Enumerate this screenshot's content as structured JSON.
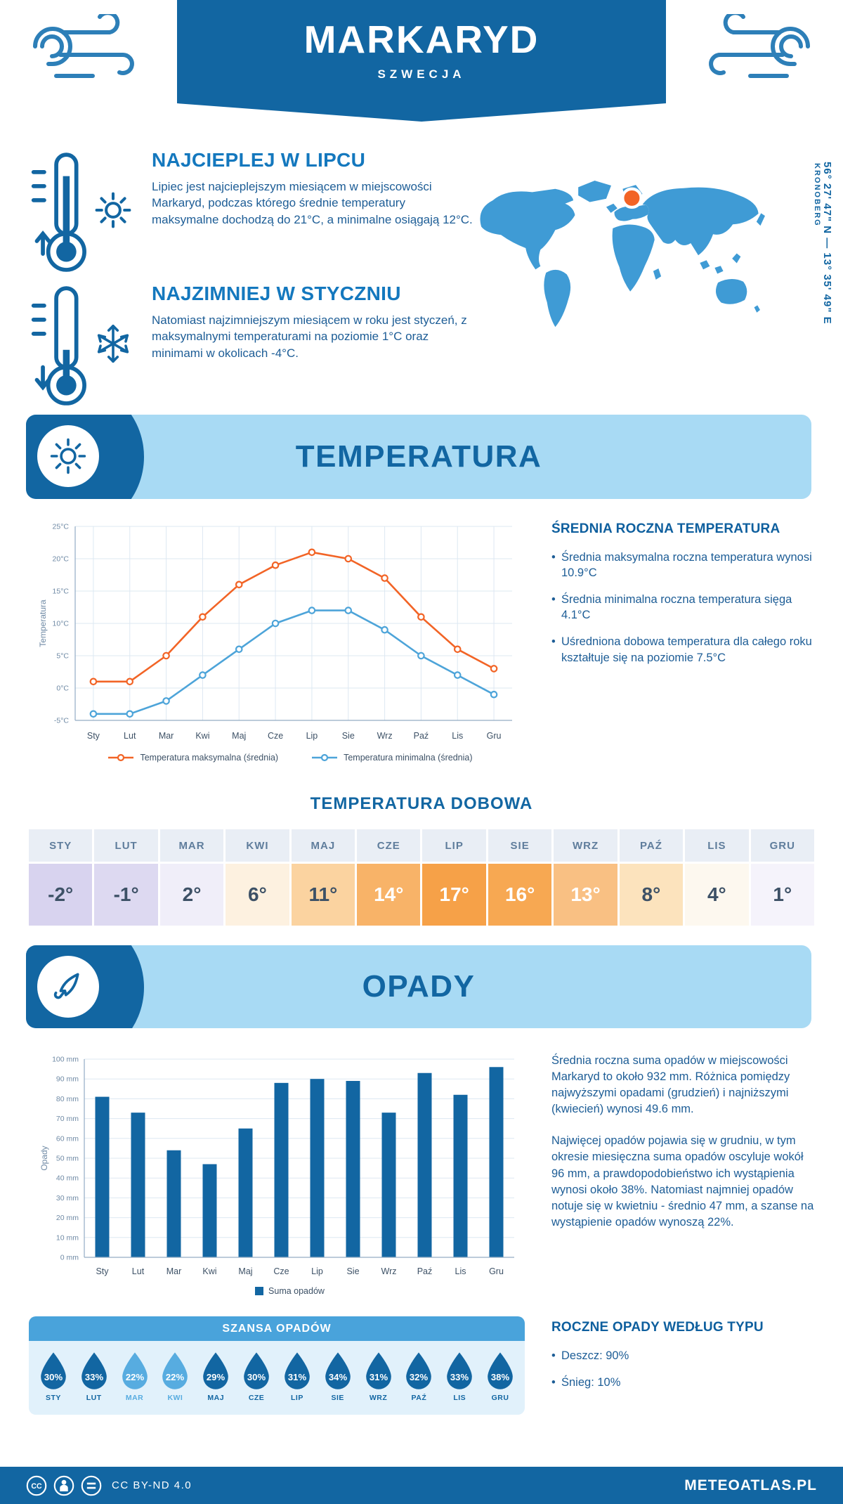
{
  "theme": {
    "dark_blue": "#1266a2",
    "banner_bg": "#a8daf4",
    "orange": "#f26426",
    "light_blue_line": "#4da4d9",
    "map_blue": "#3f9bd5",
    "body_text": "#1d5d96",
    "szansa_header_bg": "#49a3db",
    "szansa_body_bg": "#e1f1fb"
  },
  "header": {
    "title": "MARKARYD",
    "subtitle": "SZWECJA",
    "coordinates": "56° 27' 47\" N — 13° 35' 49\" E",
    "region": "KRONOBERG"
  },
  "intro": {
    "warm": {
      "title": "NAJCIEPLEJ W LIPCU",
      "text": "Lipiec jest najcieplejszym miesiącem w miejscowości Markaryd, podczas którego średnie temperatury maksymalne dochodzą do 21°C, a minimalne osiągają 12°C."
    },
    "cold": {
      "title": "NAJZIMNIEJ W STYCZNIU",
      "text": "Natomiast najzimniejszym miesiącem w roku jest styczeń, z maksymalnymi temperaturami na poziomie 1°C oraz minimami w okolicach -4°C."
    }
  },
  "temperature": {
    "banner": "TEMPERATURA",
    "side_title": "ŚREDNIA ROCZNA TEMPERATURA",
    "bullets": [
      "Średnia maksymalna roczna temperatura wynosi 10.9°C",
      "Średnia minimalna roczna temperatura sięga 4.1°C",
      "Uśredniona dobowa temperatura dla całego roku kształtuje się na poziomie 7.5°C"
    ],
    "daily_title": "TEMPERATURA DOBOWA"
  },
  "daily_table": {
    "months": [
      "STY",
      "LUT",
      "MAR",
      "KWI",
      "MAJ",
      "CZE",
      "LIP",
      "SIE",
      "WRZ",
      "PAŹ",
      "LIS",
      "GRU"
    ],
    "cells": [
      {
        "value": "-2°",
        "bg": "#d8d3ef",
        "fg": "#3d5166"
      },
      {
        "value": "-1°",
        "bg": "#ddd9f1",
        "fg": "#3d5166"
      },
      {
        "value": "2°",
        "bg": "#f0eef9",
        "fg": "#3d5166"
      },
      {
        "value": "6°",
        "bg": "#fdf1e0",
        "fg": "#3d5166"
      },
      {
        "value": "11°",
        "bg": "#fbd3a0",
        "fg": "#3d5166"
      },
      {
        "value": "14°",
        "bg": "#f8b368",
        "fg": "#ffffff"
      },
      {
        "value": "17°",
        "bg": "#f6a148",
        "fg": "#ffffff"
      },
      {
        "value": "16°",
        "bg": "#f7a852",
        "fg": "#ffffff"
      },
      {
        "value": "13°",
        "bg": "#f9c083",
        "fg": "#ffffff"
      },
      {
        "value": "8°",
        "bg": "#fce3bd",
        "fg": "#3d5166"
      },
      {
        "value": "4°",
        "bg": "#fdf8ef",
        "fg": "#3d5166"
      },
      {
        "value": "1°",
        "bg": "#f5f3fb",
        "fg": "#3d5166"
      }
    ]
  },
  "precipitation": {
    "banner": "OPADY",
    "paragraphs": [
      "Średnia roczna suma opadów w miejscowości Markaryd to około 932 mm. Różnica pomiędzy najwyższymi opadami (grudzień) i najniższymi (kwiecień) wynosi 49.6 mm.",
      "Najwięcej opadów pojawia się w grudniu, w tym okresie miesięczna suma opadów oscyluje wokół 96 mm, a prawdopodobieństwo ich wystąpienia wynosi około 38%. Natomiast najmniej opadów notuje się w kwietniu - średnio 47 mm, a szanse na wystąpienie opadów wynoszą 22%."
    ]
  },
  "rain_chance": {
    "title": "SZANSA OPADÓW",
    "items": [
      {
        "month": "STY",
        "value": "30%",
        "color": "#1266a2"
      },
      {
        "month": "LUT",
        "value": "33%",
        "color": "#1266a2"
      },
      {
        "month": "MAR",
        "value": "22%",
        "color": "#57ace0"
      },
      {
        "month": "KWI",
        "value": "22%",
        "color": "#57ace0"
      },
      {
        "month": "MAJ",
        "value": "29%",
        "color": "#1266a2"
      },
      {
        "month": "CZE",
        "value": "30%",
        "color": "#1266a2"
      },
      {
        "month": "LIP",
        "value": "31%",
        "color": "#1266a2"
      },
      {
        "month": "SIE",
        "value": "34%",
        "color": "#1266a2"
      },
      {
        "month": "WRZ",
        "value": "31%",
        "color": "#1266a2"
      },
      {
        "month": "PAŹ",
        "value": "32%",
        "color": "#1266a2"
      },
      {
        "month": "LIS",
        "value": "33%",
        "color": "#1266a2"
      },
      {
        "month": "GRU",
        "value": "38%",
        "color": "#1266a2"
      }
    ],
    "side_title": "ROCZNE OPADY WEDŁUG TYPU",
    "bullets": [
      "Deszcz: 90%",
      "Śnieg: 10%"
    ]
  },
  "footer": {
    "license": "CC BY-ND 4.0",
    "brand": "METEOATLAS.PL"
  },
  "chart_data": [
    {
      "type": "line",
      "title": "TEMPERATURA",
      "categories": [
        "Sty",
        "Lut",
        "Mar",
        "Kwi",
        "Maj",
        "Cze",
        "Lip",
        "Sie",
        "Wrz",
        "Paź",
        "Lis",
        "Gru"
      ],
      "series": [
        {
          "name": "Temperatura maksymalna (średnia)",
          "color": "#f26426",
          "values": [
            1,
            1,
            5,
            11,
            16,
            19,
            21,
            20,
            17,
            11,
            6,
            3
          ]
        },
        {
          "name": "Temperatura minimalna (średnia)",
          "color": "#4da4d9",
          "values": [
            -4,
            -4,
            -2,
            2,
            6,
            10,
            12,
            12,
            9,
            5,
            2,
            -1
          ]
        }
      ],
      "xlabel": "",
      "ylabel": "Temperatura",
      "ylim": [
        -5,
        25
      ],
      "ytick_step": 5,
      "ytick_suffix": "°C",
      "grid": true,
      "legend_position": "bottom"
    },
    {
      "type": "bar",
      "title": "OPADY",
      "categories": [
        "Sty",
        "Lut",
        "Mar",
        "Kwi",
        "Maj",
        "Cze",
        "Lip",
        "Sie",
        "Wrz",
        "Paź",
        "Lis",
        "Gru"
      ],
      "values": [
        81,
        73,
        54,
        47,
        65,
        88,
        90,
        89,
        73,
        93,
        82,
        96
      ],
      "series_name": "Suma opadów",
      "color": "#1266a2",
      "xlabel": "",
      "ylabel": "Opady",
      "ylim": [
        0,
        100
      ],
      "ytick_step": 10,
      "ytick_suffix": " mm",
      "grid": true,
      "legend_position": "bottom"
    }
  ]
}
